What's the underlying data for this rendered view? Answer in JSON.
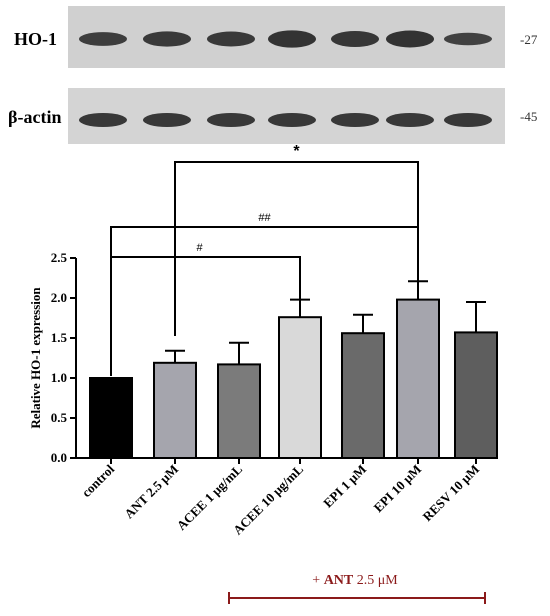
{
  "blots": [
    {
      "label": "HO-1",
      "marker": "-27",
      "band_intensity": [
        0.7,
        0.8,
        0.78,
        0.95,
        0.85,
        0.92,
        0.6
      ]
    },
    {
      "label": "β-actin",
      "marker": "-45",
      "band_intensity": [
        0.85,
        0.85,
        0.85,
        0.85,
        0.85,
        0.85,
        0.85
      ]
    }
  ],
  "treatment_label": {
    "prefix": "+ ",
    "bold": "ANT",
    "suffix": " 2.5 μM"
  },
  "colors": {
    "axis": "#000000",
    "treatment": "#8b1a1a",
    "membrane": "#d2d2d2"
  },
  "chart_data": {
    "type": "bar",
    "categories": [
      "control",
      "ANT 2.5 μM",
      "ACEE 1 μg/mL",
      "ACEE 10 μg/mL",
      "EPI 1 μM",
      "EPI 10 μM",
      "RESV 10 μM"
    ],
    "values": [
      1.0,
      1.19,
      1.17,
      1.76,
      1.56,
      1.98,
      1.57
    ],
    "errors": [
      0.0,
      0.15,
      0.27,
      0.22,
      0.23,
      0.23,
      0.38
    ],
    "bar_colors": [
      "#000000",
      "#a5a5ad",
      "#7b7b7b",
      "#d9d9d9",
      "#6a6a6a",
      "#a5a5ad",
      "#5e5e5e"
    ],
    "ylabel": "Relative HO-1 expression",
    "xlabel": "",
    "ylim": [
      0,
      2.5
    ],
    "yticks": [
      "0.0",
      "0.5",
      "1.0",
      "1.5",
      "2.0",
      "2.5"
    ],
    "grid": false,
    "significance": [
      {
        "from": 1,
        "to": 5,
        "label": "*"
      },
      {
        "from": 0,
        "to": 5,
        "label": "##"
      },
      {
        "from": 0,
        "to": 3,
        "label": "#"
      }
    ]
  }
}
